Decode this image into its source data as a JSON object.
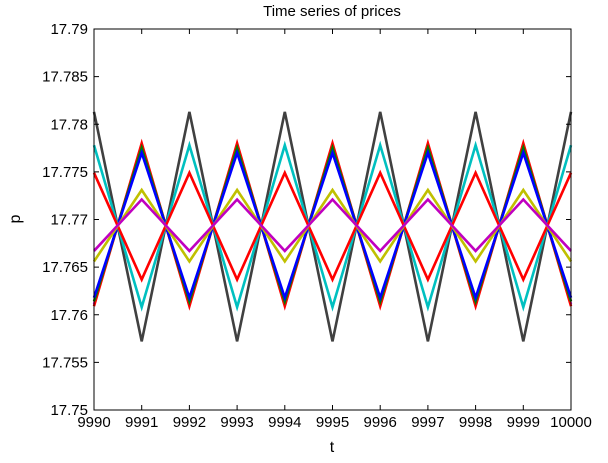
{
  "chart_data": {
    "type": "line",
    "title": "Time series of prices",
    "xlabel": "t",
    "ylabel": "p",
    "xlim": [
      9990,
      10000
    ],
    "ylim": [
      17.75,
      17.79
    ],
    "xticks": [
      9990,
      9991,
      9992,
      9993,
      9994,
      9995,
      9996,
      9997,
      9998,
      9999,
      10000
    ],
    "xtick_labels": [
      "9990",
      "9991",
      "9992",
      "9993",
      "9994",
      "9995",
      "9996",
      "9997",
      "9998",
      "9999",
      "10000"
    ],
    "yticks": [
      17.75,
      17.755,
      17.76,
      17.765,
      17.77,
      17.775,
      17.78,
      17.785,
      17.79
    ],
    "ytick_labels": [
      "17.75",
      "17.755",
      "17.76",
      "17.765",
      "17.77",
      "17.775",
      "17.78",
      "17.785",
      "17.79"
    ],
    "grid": false,
    "legend": "none",
    "x": [
      9990,
      9991,
      9992,
      9993,
      9994,
      9995,
      9996,
      9997,
      9998,
      9999,
      10000
    ],
    "series": [
      {
        "color": "#404040",
        "values": [
          17.7813,
          17.7572,
          17.7813,
          17.7572,
          17.7813,
          17.7572,
          17.7813,
          17.7572,
          17.7813,
          17.7572,
          17.7813
        ]
      },
      {
        "color": "#ff00ff",
        "values": [
          17.7611,
          17.7778,
          17.7611,
          17.7778,
          17.7611,
          17.7778,
          17.7611,
          17.7778,
          17.7611,
          17.7778,
          17.7611
        ]
      },
      {
        "color": "#ff0000",
        "values": [
          17.7609,
          17.778,
          17.7609,
          17.778,
          17.7609,
          17.778,
          17.7609,
          17.778,
          17.7609,
          17.778,
          17.7609
        ]
      },
      {
        "color": "#008000",
        "values": [
          17.7614,
          17.7775,
          17.7614,
          17.7775,
          17.7614,
          17.7775,
          17.7614,
          17.7775,
          17.7614,
          17.7775,
          17.7614
        ]
      },
      {
        "color": "#0000ff",
        "values": [
          17.7618,
          17.777,
          17.7618,
          17.777,
          17.7618,
          17.777,
          17.7618,
          17.777,
          17.7618,
          17.777,
          17.7618
        ]
      },
      {
        "color": "#00c0c0",
        "values": [
          17.7778,
          17.7608,
          17.7778,
          17.7608,
          17.7778,
          17.7608,
          17.7778,
          17.7608,
          17.7778,
          17.7608,
          17.7778
        ]
      },
      {
        "color": "#ff0000",
        "values": [
          17.7749,
          17.7637,
          17.7749,
          17.7637,
          17.7749,
          17.7637,
          17.7749,
          17.7637,
          17.7749,
          17.7637,
          17.7749
        ]
      },
      {
        "color": "#c0c000",
        "values": [
          17.7656,
          17.7731,
          17.7656,
          17.7731,
          17.7656,
          17.7731,
          17.7656,
          17.7731,
          17.7656,
          17.7731,
          17.7656
        ]
      },
      {
        "color": "#c000c0",
        "values": [
          17.7667,
          17.7721,
          17.7667,
          17.7721,
          17.7667,
          17.7721,
          17.7667,
          17.7721,
          17.7667,
          17.7721,
          17.7667
        ]
      }
    ]
  }
}
